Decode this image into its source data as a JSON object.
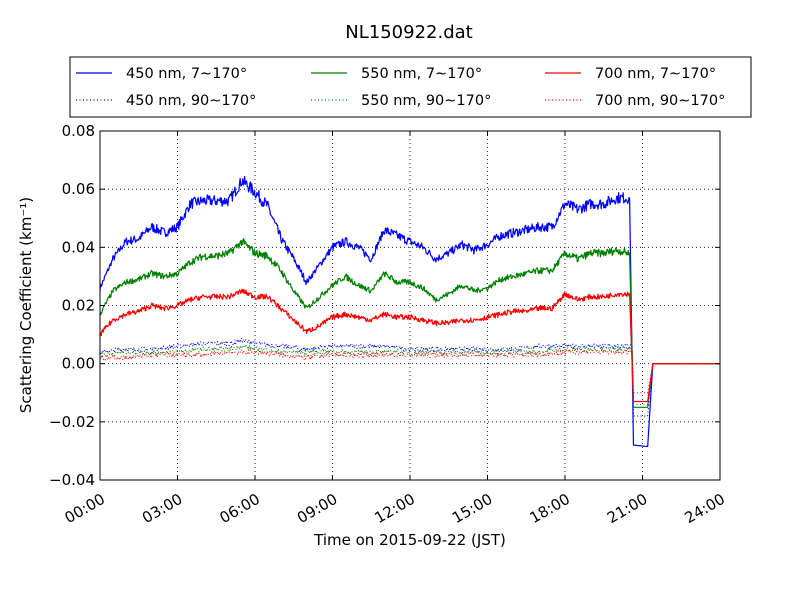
{
  "chart_data": {
    "type": "line",
    "title": "NL150922.dat",
    "xlabel": "Time on 2015-09-22 (JST)",
    "ylabel": "Scattering Coefficient (km⁻¹)",
    "xlim": [
      0,
      24
    ],
    "ylim": [
      -0.04,
      0.08
    ],
    "x_ticks": [
      0,
      3,
      6,
      9,
      12,
      15,
      18,
      21,
      24
    ],
    "x_tick_labels": [
      "00:00",
      "03:00",
      "06:00",
      "09:00",
      "12:00",
      "15:00",
      "18:00",
      "21:00",
      "24:00"
    ],
    "y_ticks": [
      -0.04,
      -0.02,
      0.0,
      0.02,
      0.04,
      0.06,
      0.08
    ],
    "y_tick_labels": [
      "−0.04",
      "−0.02",
      "0.00",
      "0.02",
      "0.04",
      "0.06",
      "0.08"
    ],
    "grid": true,
    "legend": {
      "placement": "top, above plot",
      "columns": 3
    },
    "series": [
      {
        "name": "450 nm, 7∼170°",
        "color": "#0000ff",
        "style": "solid",
        "x": [
          0,
          0.5,
          1,
          1.5,
          2,
          2.5,
          3,
          3.5,
          4,
          4.5,
          5,
          5.5,
          6,
          6.5,
          7,
          7.5,
          8,
          8.5,
          9,
          9.5,
          10,
          10.5,
          11,
          11.5,
          12,
          12.5,
          13,
          13.5,
          14,
          14.5,
          15,
          15.5,
          16,
          16.5,
          17,
          17.5,
          18,
          18.5,
          19,
          19.5,
          20,
          20.5,
          20.65,
          21.2,
          21.4,
          21.6,
          22,
          23,
          24
        ],
        "y": [
          0.026,
          0.036,
          0.042,
          0.043,
          0.047,
          0.045,
          0.047,
          0.055,
          0.056,
          0.056,
          0.056,
          0.063,
          0.059,
          0.054,
          0.043,
          0.036,
          0.028,
          0.034,
          0.04,
          0.042,
          0.04,
          0.036,
          0.046,
          0.044,
          0.042,
          0.04,
          0.036,
          0.038,
          0.041,
          0.039,
          0.041,
          0.044,
          0.045,
          0.046,
          0.047,
          0.047,
          0.055,
          0.053,
          0.055,
          0.055,
          0.057,
          0.057,
          -0.028,
          -0.0285,
          0.0,
          0.0,
          0.0,
          0.0,
          0.0
        ]
      },
      {
        "name": "450 nm, 90∼170°",
        "color": "#0000ff",
        "style": "dotted",
        "x": [
          0,
          1,
          2,
          3,
          4,
          5,
          5.5,
          6,
          7,
          8,
          9,
          10,
          11,
          12,
          13,
          14,
          15,
          16,
          17,
          18,
          19,
          20,
          20.6,
          20.65,
          21.2,
          21.4,
          22,
          23,
          24
        ],
        "y": [
          0.004,
          0.005,
          0.005,
          0.006,
          0.007,
          0.007,
          0.008,
          0.007,
          0.006,
          0.005,
          0.006,
          0.006,
          0.006,
          0.005,
          0.005,
          0.005,
          0.005,
          0.005,
          0.006,
          0.006,
          0.006,
          0.006,
          0.006,
          -0.018,
          -0.018,
          0.0,
          0.0,
          0.0,
          0.0
        ]
      },
      {
        "name": "550 nm, 7∼170°",
        "color": "#008000",
        "style": "solid",
        "x": [
          0,
          0.5,
          1,
          1.5,
          2,
          2.5,
          3,
          3.5,
          4,
          4.5,
          5,
          5.5,
          6,
          6.5,
          7,
          7.5,
          8,
          8.5,
          9,
          9.5,
          10,
          10.5,
          11,
          11.5,
          12,
          12.5,
          13,
          13.5,
          14,
          14.5,
          15,
          15.5,
          16,
          16.5,
          17,
          17.5,
          18,
          18.5,
          19,
          19.5,
          20,
          20.5,
          20.65,
          21.2,
          21.4,
          22,
          23,
          24
        ],
        "y": [
          0.017,
          0.025,
          0.028,
          0.029,
          0.031,
          0.03,
          0.031,
          0.035,
          0.037,
          0.037,
          0.038,
          0.042,
          0.038,
          0.037,
          0.032,
          0.025,
          0.019,
          0.023,
          0.027,
          0.03,
          0.027,
          0.025,
          0.031,
          0.028,
          0.028,
          0.026,
          0.022,
          0.024,
          0.027,
          0.025,
          0.026,
          0.029,
          0.03,
          0.031,
          0.032,
          0.032,
          0.038,
          0.036,
          0.038,
          0.038,
          0.039,
          0.038,
          -0.015,
          -0.015,
          0.0,
          0.0,
          0.0,
          0.0
        ]
      },
      {
        "name": "550 nm, 90∼170°",
        "color": "#008000",
        "style": "dotted",
        "x": [
          0,
          1,
          2,
          3,
          4,
          5,
          5.5,
          6,
          7,
          8,
          9,
          10,
          11,
          12,
          13,
          14,
          15,
          16,
          17,
          18,
          19,
          20,
          20.6,
          20.65,
          21.2,
          21.4,
          22,
          23,
          24
        ],
        "y": [
          0.003,
          0.004,
          0.004,
          0.004,
          0.005,
          0.005,
          0.006,
          0.005,
          0.004,
          0.004,
          0.004,
          0.004,
          0.004,
          0.004,
          0.004,
          0.004,
          0.004,
          0.004,
          0.004,
          0.005,
          0.005,
          0.005,
          0.005,
          -0.014,
          -0.014,
          0.0,
          0.0,
          0.0,
          0.0
        ]
      },
      {
        "name": "700 nm, 7∼170°",
        "color": "#ff0000",
        "style": "solid",
        "x": [
          0,
          0.5,
          1,
          1.5,
          2,
          2.5,
          3,
          3.5,
          4,
          4.5,
          5,
          5.5,
          6,
          6.5,
          7,
          7.5,
          8,
          8.5,
          9,
          9.5,
          10,
          10.5,
          11,
          11.5,
          12,
          12.5,
          13,
          13.5,
          14,
          14.5,
          15,
          15.5,
          16,
          16.5,
          17,
          17.5,
          18,
          18.5,
          19,
          19.5,
          20,
          20.5,
          20.65,
          21.2,
          21.4,
          22,
          23,
          24
        ],
        "y": [
          0.01,
          0.015,
          0.017,
          0.018,
          0.02,
          0.019,
          0.02,
          0.022,
          0.023,
          0.023,
          0.023,
          0.025,
          0.023,
          0.023,
          0.019,
          0.015,
          0.011,
          0.013,
          0.016,
          0.017,
          0.016,
          0.015,
          0.017,
          0.016,
          0.016,
          0.015,
          0.014,
          0.014,
          0.015,
          0.015,
          0.016,
          0.017,
          0.018,
          0.018,
          0.019,
          0.019,
          0.024,
          0.022,
          0.023,
          0.023,
          0.024,
          0.024,
          -0.013,
          -0.013,
          0.0,
          0.0,
          0.0,
          0.0
        ]
      },
      {
        "name": "700 nm, 90∼170°",
        "color": "#ff0000",
        "style": "dotted",
        "x": [
          0,
          1,
          2,
          3,
          4,
          5,
          5.5,
          6,
          7,
          8,
          9,
          10,
          11,
          12,
          13,
          14,
          15,
          16,
          17,
          18,
          19,
          20,
          20.6,
          20.65,
          21.2,
          21.4,
          22,
          23,
          24
        ],
        "y": [
          0.002,
          0.002,
          0.003,
          0.003,
          0.003,
          0.004,
          0.004,
          0.004,
          0.003,
          0.002,
          0.003,
          0.003,
          0.003,
          0.003,
          0.003,
          0.003,
          0.003,
          0.003,
          0.003,
          0.004,
          0.004,
          0.004,
          0.004,
          -0.01,
          -0.01,
          0.0,
          0.0,
          0.0,
          0.0
        ]
      }
    ]
  }
}
